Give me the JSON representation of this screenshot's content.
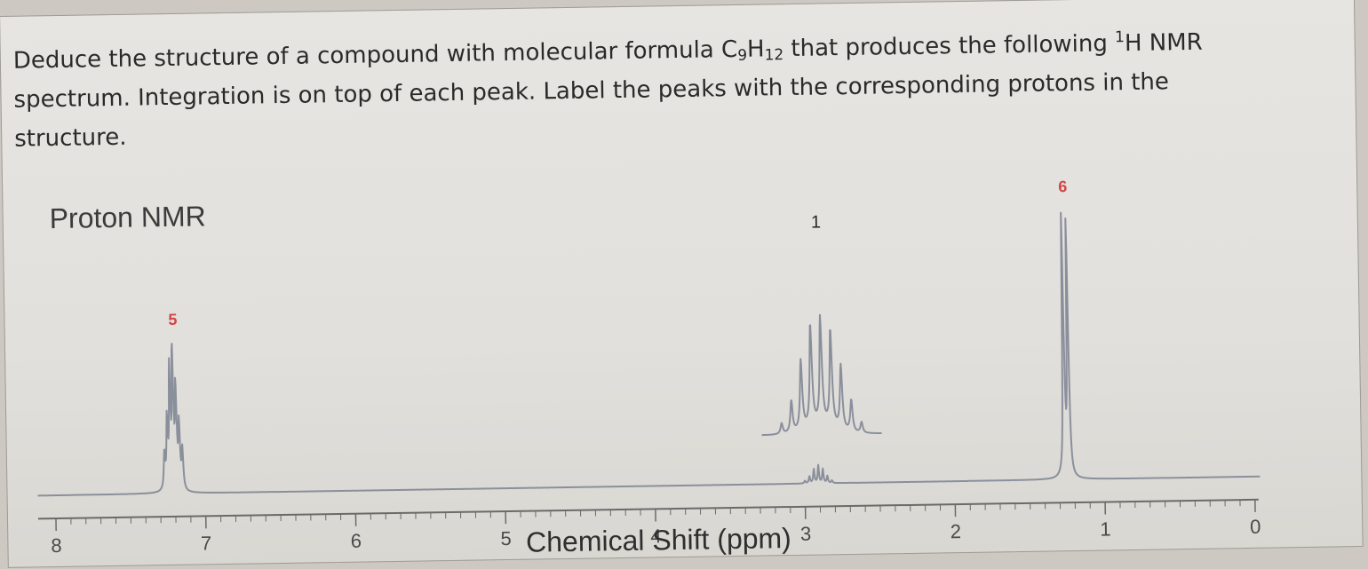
{
  "question": {
    "part1": "Deduce the structure of a compound with molecular formula C",
    "sub1": "9",
    "part2": "H",
    "sub2": "12",
    "part3": " that produces the following ",
    "sup1": "1",
    "part4": "H NMR spectrum. Integration is on top of each peak. Label the peaks with the corresponding protons in the structure."
  },
  "chart_title": "Proton NMR",
  "chart_data": {
    "type": "line",
    "title": "Proton NMR",
    "xlabel": "Chemical Shift (ppm)",
    "ylabel": "",
    "xlim": [
      8,
      0
    ],
    "x_reversed": true,
    "ticks": [
      "8",
      "7",
      "6",
      "5",
      "4",
      "3",
      "2",
      "1",
      "0"
    ],
    "tick_values": [
      8,
      7,
      6,
      5,
      4,
      3,
      2,
      1,
      0
    ],
    "peaks": [
      {
        "shift": 7.2,
        "integration": "5",
        "multiplicity": "multiplet"
      },
      {
        "shift": 2.9,
        "integration": "1",
        "multiplicity": "septet"
      },
      {
        "shift": 1.25,
        "integration": "6",
        "multiplicity": "doublet"
      }
    ],
    "grid": false,
    "colors": {
      "trace": "#8a8f9c",
      "integration": "#d24545",
      "axis": "#6a6a6a"
    }
  }
}
